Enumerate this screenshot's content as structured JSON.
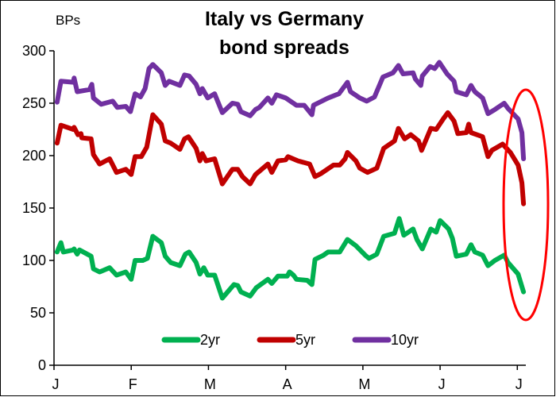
{
  "chart_data": {
    "type": "line",
    "title": [
      "Italy vs Germany",
      "bond spreads"
    ],
    "ylabel": "BPs",
    "xlabel": "",
    "ylim": [
      0,
      300
    ],
    "xlim": [
      0,
      6.11
    ],
    "yticks": [
      0,
      50,
      100,
      150,
      200,
      250,
      300
    ],
    "xticks": [
      0,
      1,
      2,
      3,
      4,
      5,
      6
    ],
    "xtick_labels": [
      "J",
      "F",
      "M",
      "A",
      "M",
      "J",
      "J"
    ],
    "x_unit": "months since start of January",
    "grid": false,
    "legend_position": "bottom-center",
    "annotation": "red ellipse highlighting the latest decline",
    "series": [
      {
        "name": "2yr",
        "color": "#00b050",
        "points": [
          [
            0.04,
            108
          ],
          [
            0.09,
            117
          ],
          [
            0.12,
            108
          ],
          [
            0.25,
            110
          ],
          [
            0.26,
            111
          ],
          [
            0.3,
            106
          ],
          [
            0.33,
            110
          ],
          [
            0.48,
            104
          ],
          [
            0.51,
            92
          ],
          [
            0.59,
            89
          ],
          [
            0.72,
            93
          ],
          [
            0.81,
            86
          ],
          [
            0.93,
            89
          ],
          [
            1.0,
            82
          ],
          [
            1.05,
            100
          ],
          [
            1.15,
            100
          ],
          [
            1.21,
            102
          ],
          [
            1.28,
            123
          ],
          [
            1.39,
            117
          ],
          [
            1.44,
            104
          ],
          [
            1.51,
            98
          ],
          [
            1.63,
            95
          ],
          [
            1.7,
            106
          ],
          [
            1.75,
            108
          ],
          [
            1.84,
            98
          ],
          [
            1.89,
            87
          ],
          [
            1.94,
            93
          ],
          [
            1.99,
            86
          ],
          [
            2.08,
            86
          ],
          [
            2.18,
            64
          ],
          [
            2.33,
            77
          ],
          [
            2.38,
            76
          ],
          [
            2.42,
            70
          ],
          [
            2.54,
            66
          ],
          [
            2.62,
            74
          ],
          [
            2.77,
            82
          ],
          [
            2.82,
            78
          ],
          [
            2.9,
            85
          ],
          [
            3.02,
            85
          ],
          [
            3.05,
            89
          ],
          [
            3.1,
            86
          ],
          [
            3.14,
            82
          ],
          [
            3.28,
            81
          ],
          [
            3.34,
            77
          ],
          [
            3.38,
            101
          ],
          [
            3.49,
            105
          ],
          [
            3.55,
            108
          ],
          [
            3.7,
            108
          ],
          [
            3.8,
            120
          ],
          [
            3.91,
            114
          ],
          [
            4.03,
            105
          ],
          [
            4.08,
            102
          ],
          [
            4.18,
            106
          ],
          [
            4.27,
            123
          ],
          [
            4.41,
            126
          ],
          [
            4.47,
            140
          ],
          [
            4.53,
            124
          ],
          [
            4.65,
            130
          ],
          [
            4.7,
            120
          ],
          [
            4.77,
            111
          ],
          [
            4.88,
            130
          ],
          [
            4.95,
            127
          ],
          [
            5.0,
            138
          ],
          [
            5.11,
            130
          ],
          [
            5.16,
            121
          ],
          [
            5.21,
            104
          ],
          [
            5.34,
            106
          ],
          [
            5.4,
            115
          ],
          [
            5.45,
            108
          ],
          [
            5.55,
            105
          ],
          [
            5.62,
            95
          ],
          [
            5.71,
            100
          ],
          [
            5.83,
            105
          ],
          [
            5.88,
            98
          ],
          [
            6.01,
            87
          ],
          [
            6.08,
            70
          ]
        ]
      },
      {
        "name": "5yr",
        "color": "#c00000",
        "points": [
          [
            0.04,
            212
          ],
          [
            0.09,
            229
          ],
          [
            0.25,
            225
          ],
          [
            0.26,
            227
          ],
          [
            0.31,
            220
          ],
          [
            0.35,
            221
          ],
          [
            0.36,
            217
          ],
          [
            0.48,
            216
          ],
          [
            0.51,
            201
          ],
          [
            0.59,
            192
          ],
          [
            0.72,
            197
          ],
          [
            0.81,
            184
          ],
          [
            0.93,
            187
          ],
          [
            1.0,
            182
          ],
          [
            1.05,
            199
          ],
          [
            1.13,
            199
          ],
          [
            1.2,
            208
          ],
          [
            1.28,
            239
          ],
          [
            1.39,
            230
          ],
          [
            1.44,
            214
          ],
          [
            1.51,
            212
          ],
          [
            1.63,
            206
          ],
          [
            1.69,
            216
          ],
          [
            1.74,
            218
          ],
          [
            1.84,
            207
          ],
          [
            1.89,
            195
          ],
          [
            1.92,
            202
          ],
          [
            1.97,
            195
          ],
          [
            2.08,
            197
          ],
          [
            2.18,
            173
          ],
          [
            2.31,
            187
          ],
          [
            2.38,
            187
          ],
          [
            2.44,
            180
          ],
          [
            2.54,
            173
          ],
          [
            2.61,
            182
          ],
          [
            2.77,
            192
          ],
          [
            2.82,
            184
          ],
          [
            2.9,
            195
          ],
          [
            3.0,
            196
          ],
          [
            3.03,
            199
          ],
          [
            3.16,
            195
          ],
          [
            3.31,
            192
          ],
          [
            3.38,
            180
          ],
          [
            3.46,
            183
          ],
          [
            3.62,
            191
          ],
          [
            3.7,
            191
          ],
          [
            3.77,
            197
          ],
          [
            3.8,
            203
          ],
          [
            3.91,
            195
          ],
          [
            3.96,
            188
          ],
          [
            4.06,
            184
          ],
          [
            4.18,
            188
          ],
          [
            4.27,
            207
          ],
          [
            4.41,
            214
          ],
          [
            4.46,
            226
          ],
          [
            4.54,
            216
          ],
          [
            4.62,
            220
          ],
          [
            4.72,
            214
          ],
          [
            4.76,
            205
          ],
          [
            4.88,
            226
          ],
          [
            4.95,
            225
          ],
          [
            5.04,
            235
          ],
          [
            5.1,
            241
          ],
          [
            5.18,
            233
          ],
          [
            5.23,
            221
          ],
          [
            5.34,
            222
          ],
          [
            5.37,
            230
          ],
          [
            5.4,
            222
          ],
          [
            5.55,
            218
          ],
          [
            5.62,
            199
          ],
          [
            5.67,
            205
          ],
          [
            5.81,
            211
          ],
          [
            5.91,
            203
          ],
          [
            6.01,
            191
          ],
          [
            6.06,
            174
          ],
          [
            6.08,
            154
          ]
        ]
      },
      {
        "name": "10yr",
        "color": "#7030a0",
        "points": [
          [
            0.04,
            251
          ],
          [
            0.09,
            271
          ],
          [
            0.25,
            270
          ],
          [
            0.26,
            274
          ],
          [
            0.3,
            261
          ],
          [
            0.46,
            263
          ],
          [
            0.49,
            268
          ],
          [
            0.51,
            255
          ],
          [
            0.61,
            249
          ],
          [
            0.76,
            252
          ],
          [
            0.82,
            246
          ],
          [
            0.93,
            247
          ],
          [
            0.99,
            242
          ],
          [
            1.05,
            259
          ],
          [
            1.12,
            256
          ],
          [
            1.18,
            264
          ],
          [
            1.23,
            283
          ],
          [
            1.28,
            287
          ],
          [
            1.39,
            279
          ],
          [
            1.44,
            267
          ],
          [
            1.49,
            271
          ],
          [
            1.63,
            267
          ],
          [
            1.69,
            277
          ],
          [
            1.75,
            276
          ],
          [
            1.84,
            268
          ],
          [
            1.89,
            259
          ],
          [
            1.92,
            264
          ],
          [
            1.99,
            255
          ],
          [
            2.08,
            259
          ],
          [
            2.18,
            241
          ],
          [
            2.31,
            250
          ],
          [
            2.38,
            249
          ],
          [
            2.42,
            242
          ],
          [
            2.54,
            238
          ],
          [
            2.61,
            244
          ],
          [
            2.66,
            246
          ],
          [
            2.77,
            255
          ],
          [
            2.82,
            250
          ],
          [
            2.88,
            258
          ],
          [
            3.0,
            255
          ],
          [
            3.14,
            248
          ],
          [
            3.24,
            248
          ],
          [
            3.34,
            239
          ],
          [
            3.36,
            248
          ],
          [
            3.55,
            255
          ],
          [
            3.69,
            259
          ],
          [
            3.8,
            270
          ],
          [
            3.84,
            261
          ],
          [
            3.96,
            255
          ],
          [
            4.05,
            252
          ],
          [
            4.15,
            256
          ],
          [
            4.26,
            275
          ],
          [
            4.39,
            279
          ],
          [
            4.46,
            286
          ],
          [
            4.52,
            278
          ],
          [
            4.65,
            279
          ],
          [
            4.68,
            273
          ],
          [
            4.75,
            267
          ],
          [
            4.77,
            276
          ],
          [
            4.87,
            285
          ],
          [
            4.93,
            283
          ],
          [
            4.99,
            289
          ],
          [
            5.09,
            278
          ],
          [
            5.18,
            271
          ],
          [
            5.21,
            261
          ],
          [
            5.34,
            258
          ],
          [
            5.4,
            267
          ],
          [
            5.45,
            261
          ],
          [
            5.55,
            255
          ],
          [
            5.62,
            240
          ],
          [
            5.71,
            244
          ],
          [
            5.83,
            250
          ],
          [
            5.88,
            245
          ],
          [
            6.01,
            235
          ],
          [
            6.06,
            222
          ],
          [
            6.08,
            197
          ]
        ]
      }
    ]
  }
}
